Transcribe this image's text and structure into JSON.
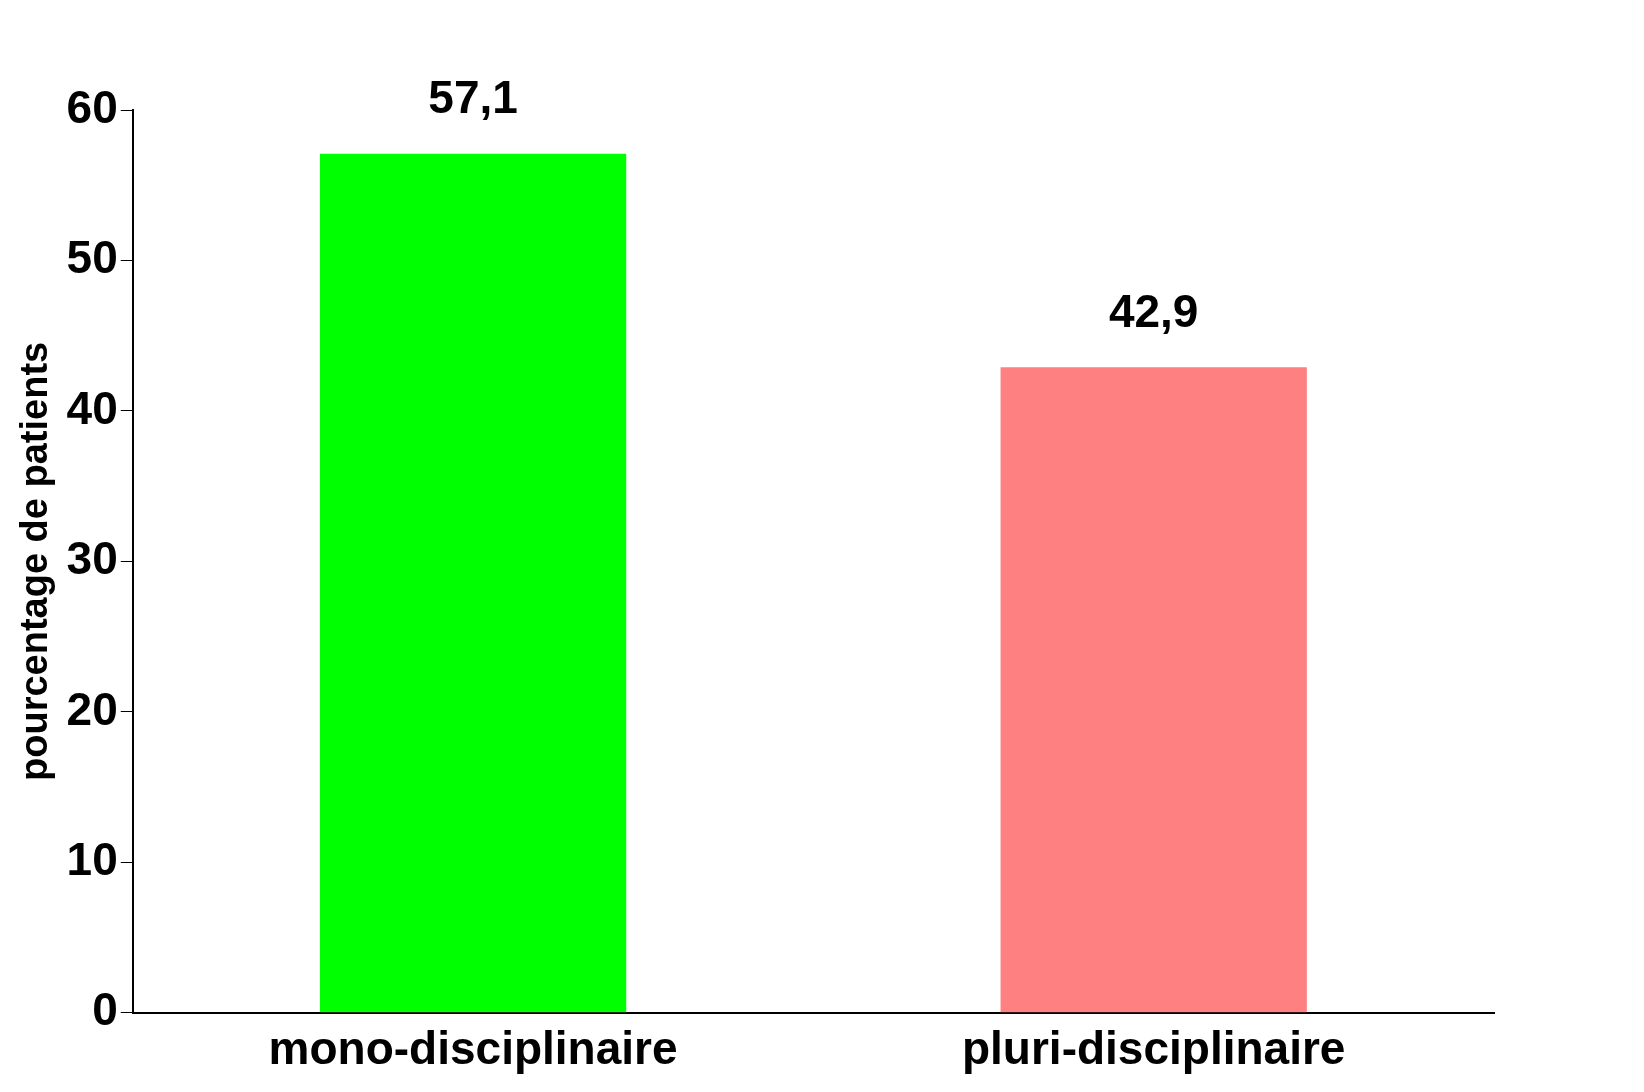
{
  "chart_data": {
    "type": "bar",
    "ylabel": "pourcentage de patients",
    "categories": [
      "mono-disciplinaire",
      "pluri-disciplinaire"
    ],
    "values": [
      57.1,
      42.9
    ],
    "colors": [
      "#00ff00",
      "#ff8080"
    ],
    "value_labels": [
      "57,1",
      "42,9"
    ],
    "ylim": [
      0,
      60
    ],
    "yticks": [
      0,
      10,
      20,
      30,
      40,
      50,
      60
    ],
    "grid": false,
    "legend": false
  }
}
